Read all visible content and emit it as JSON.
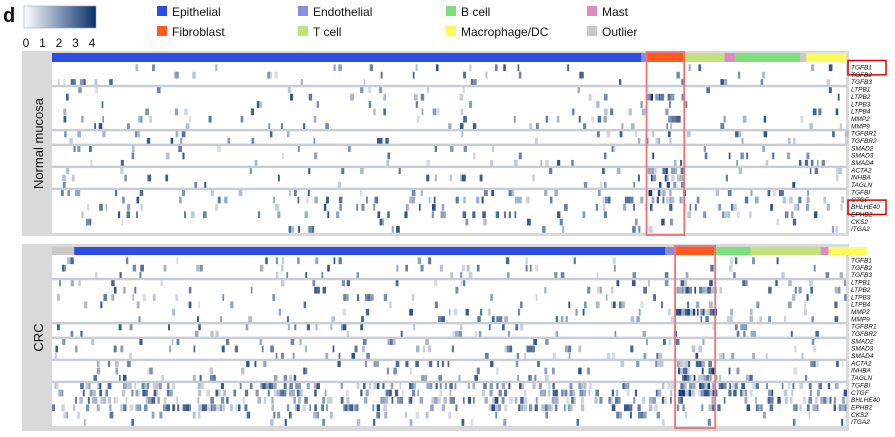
{
  "panel_label": "d",
  "colors": {
    "Epithelial": "#2b4ee6",
    "Endothelial": "#8b8be0",
    "B cell": "#7de07d",
    "Mast": "#e08ac2",
    "Fibroblast": "#ff5a1f",
    "T cell": "#c3e27a",
    "Macrophage/DC": "#fbfb5a",
    "Outlier": "#c8c8c8",
    "panel_bg": "#d9d9d9",
    "separator": "#c8ccd4",
    "highlight": "#f47272",
    "gene_box": "#e00000"
  },
  "chart_data": {
    "type": "heatmap",
    "colorbar": {
      "ticks": [
        "0",
        "1",
        "2",
        "3",
        "4"
      ],
      "range": [
        0,
        4
      ],
      "colors": [
        "#ffffff",
        "#08306b"
      ]
    },
    "legend": [
      "Epithelial",
      "Endothelial",
      "B cell",
      "Mast",
      "Fibroblast",
      "T cell",
      "Macrophage/DC",
      "Outlier"
    ],
    "genes": [
      "TGFB1",
      "TGFB2",
      "TGFB3",
      "LTPB1",
      "LTPB2",
      "LTPB3",
      "LTPB4",
      "MMP2",
      "MMP9",
      "TGFBR1",
      "TGFBR2",
      "SMAD2",
      "SMAD3",
      "SMAD4",
      "ACTA2",
      "INHBA",
      "TAGLN",
      "TGFBI",
      "CTGF",
      "BHLHE40",
      "EPHB2",
      "CKS2",
      "ITGA2"
    ],
    "gene_groups": [
      3,
      6,
      2,
      3,
      3,
      6
    ],
    "panels": [
      {
        "name": "Normal mucosa",
        "cell_segments": [
          {
            "type": "Epithelial",
            "fraction": 0.742
          },
          {
            "type": "Endothelial",
            "fraction": 0.008
          },
          {
            "type": "Fibroblast",
            "fraction": 0.045
          },
          {
            "type": "T cell",
            "fraction": 0.052
          },
          {
            "type": "Mast",
            "fraction": 0.013
          },
          {
            "type": "B cell",
            "fraction": 0.082
          },
          {
            "type": "Outlier",
            "fraction": 0.008
          },
          {
            "type": "Macrophage/DC",
            "fraction": 0.05
          }
        ],
        "highlight_type": "Fibroblast",
        "boxed_genes": [
          "TGFB1",
          "BHLHE40"
        ]
      },
      {
        "name": "CRC",
        "cell_segments": [
          {
            "type": "Outlier",
            "fraction": 0.028
          },
          {
            "type": "Epithelial",
            "fraction": 0.744
          },
          {
            "type": "Endothelial",
            "fraction": 0.014
          },
          {
            "type": "Fibroblast",
            "fraction": 0.048
          },
          {
            "type": "B cell",
            "fraction": 0.046
          },
          {
            "type": "T cell",
            "fraction": 0.088
          },
          {
            "type": "Mast",
            "fraction": 0.01
          },
          {
            "type": "Macrophage/DC",
            "fraction": 0.048
          }
        ],
        "highlight_type": "Fibroblast",
        "boxed_genes": []
      }
    ]
  }
}
